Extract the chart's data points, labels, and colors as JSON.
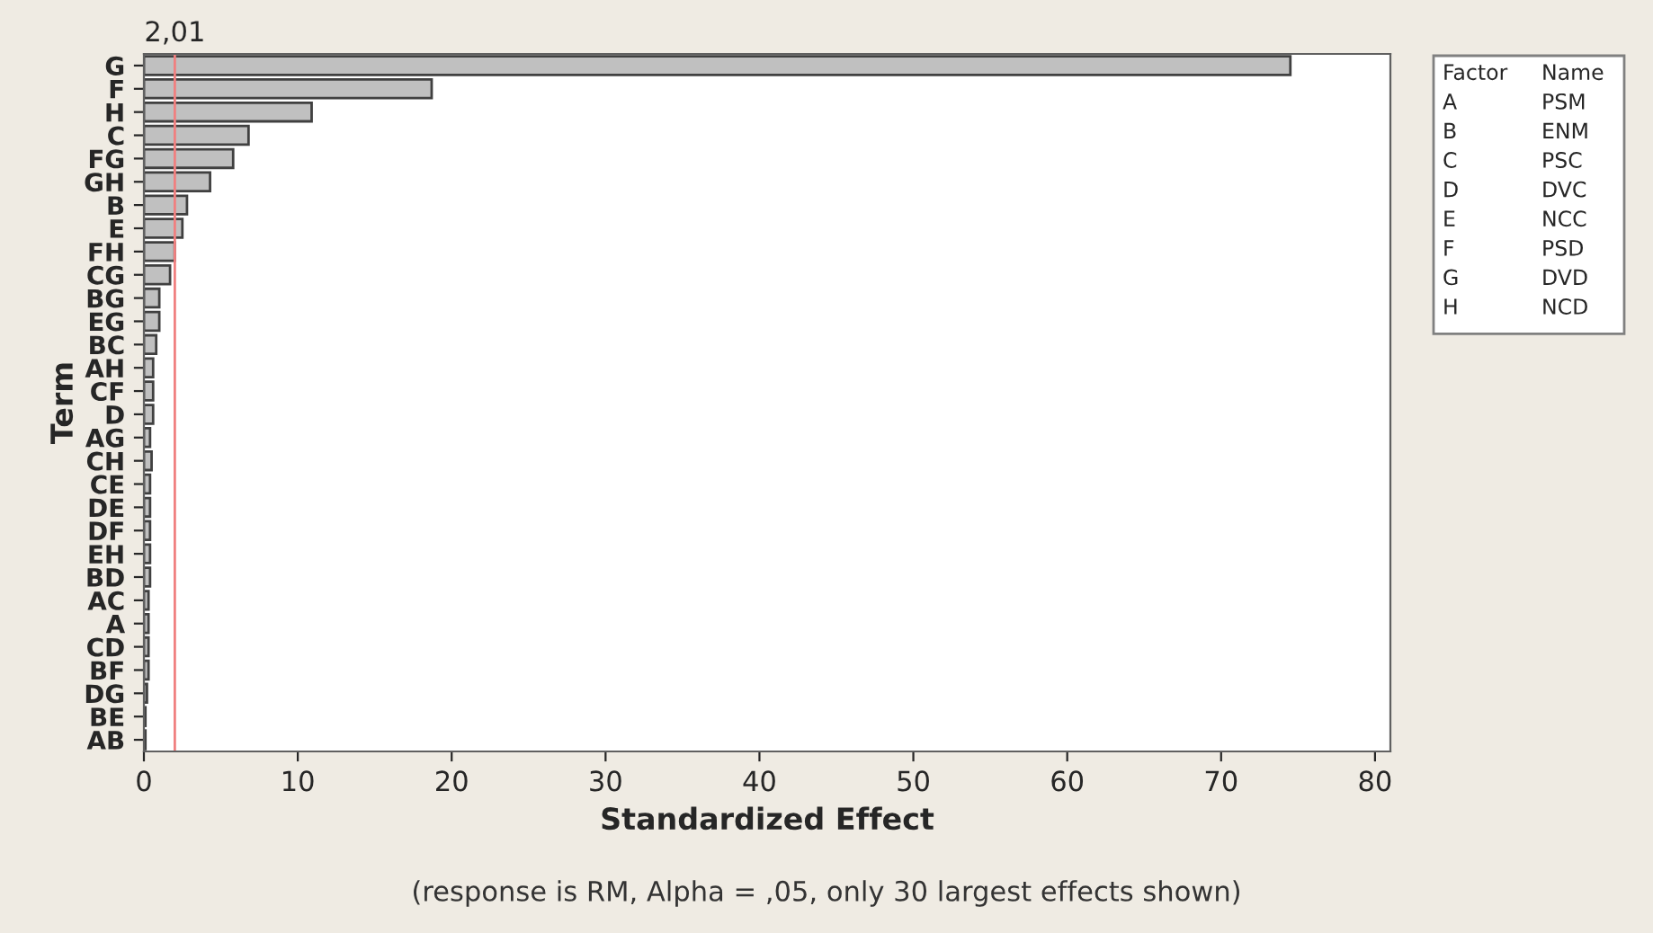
{
  "chart_data": {
    "type": "bar",
    "orientation": "horizontal",
    "xlabel": "Standardized Effect",
    "ylabel": "Term",
    "categories": [
      "G",
      "F",
      "H",
      "C",
      "FG",
      "GH",
      "B",
      "E",
      "FH",
      "CG",
      "BG",
      "EG",
      "BC",
      "AH",
      "CF",
      "D",
      "AG",
      "CH",
      "CE",
      "DE",
      "DF",
      "EH",
      "BD",
      "AC",
      "A",
      "CD",
      "BF",
      "DG",
      "BE",
      "AB"
    ],
    "values": [
      74.5,
      18.7,
      10.9,
      6.8,
      5.8,
      4.3,
      2.8,
      2.5,
      2.0,
      1.7,
      1.0,
      1.0,
      0.8,
      0.6,
      0.6,
      0.6,
      0.4,
      0.5,
      0.4,
      0.4,
      0.4,
      0.4,
      0.4,
      0.3,
      0.3,
      0.3,
      0.3,
      0.2,
      0.1,
      0.1
    ],
    "color": "#c0c0c0",
    "xlim": [
      0,
      81
    ],
    "xticks": [
      0,
      10,
      20,
      30,
      40,
      50,
      60,
      70,
      80
    ],
    "ref_lines": [
      {
        "axis": "x",
        "value": 2.01,
        "label": "2,01",
        "color": "#f08080"
      }
    ],
    "annotations": [
      "Factor",
      "Name",
      "A",
      "PSM",
      "B",
      "ENM",
      "C",
      "PSC",
      "D",
      "DVC",
      "E",
      "NCC",
      "F",
      "PSD",
      "G",
      "DVD",
      "H",
      "NCD",
      "(response is RM, Alpha = ,05, only 30 largest effects shown)"
    ],
    "grid": false,
    "legend": false
  }
}
